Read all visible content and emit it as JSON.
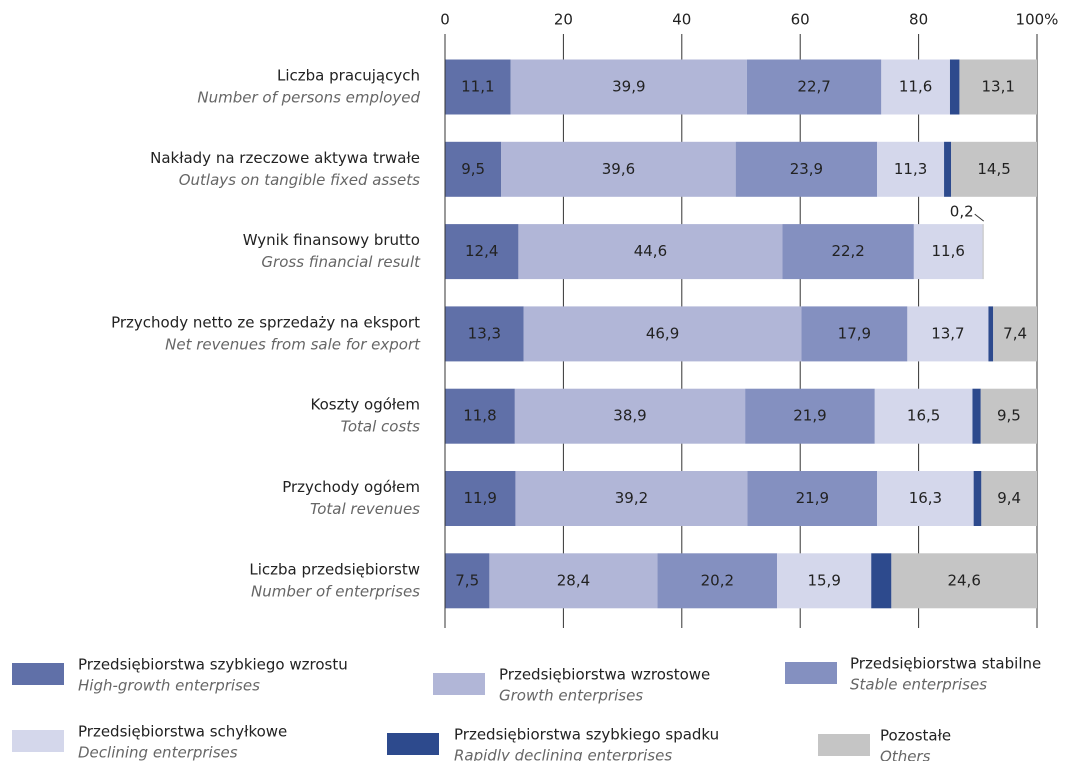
{
  "chart_data": {
    "type": "stacked_bar_horizontal",
    "categories": [
      "Liczba pracujących",
      "Nakłady na rzeczowe aktywa trwałe",
      "Wynik finansowy brutto",
      "Przychody netto ze sprzedaży na eksport",
      "Koszty ogółem",
      "Przychody ogółem",
      "Liczba przedsiębiorstw"
    ],
    "categories_en": [
      "Number of persons employed",
      "Outlays on tangible fixed assets",
      "Gross financial result",
      "Net revenues from sale for export",
      "Total costs",
      "Total revenues",
      "Number of enterprises"
    ],
    "xlim": [
      0,
      100
    ],
    "xticks": [
      0,
      20,
      40,
      60,
      80,
      {
        "value": 100,
        "label": "100%"
      }
    ],
    "grid": true,
    "series": [
      {
        "name": "Przedsiębiorstwa szybkiego wzrostu",
        "name_en": "High-growth enterprises",
        "color": "#6070a8",
        "values": [
          11.1,
          9.5,
          12.4,
          13.3,
          11.8,
          11.9,
          7.5
        ],
        "value_labels": [
          "11,1",
          "9,5",
          "12,4",
          "13,3",
          "11,8",
          "11,9",
          "7,5"
        ]
      },
      {
        "name": "Przedsiębiorstwa wzrostowe",
        "name_en": "Growth enterprises",
        "color": "#b1b6d7",
        "values": [
          39.9,
          39.6,
          44.6,
          46.9,
          38.9,
          39.2,
          28.4
        ],
        "value_labels": [
          "39,9",
          "39,6",
          "44,6",
          "46,9",
          "38,9",
          "39,2",
          "28,4"
        ]
      },
      {
        "name": "Przedsiębiorstwa stabilne",
        "name_en": "Stable enterprises",
        "color": "#8490c0",
        "values": [
          22.7,
          23.9,
          22.2,
          17.9,
          21.9,
          21.9,
          20.2
        ],
        "value_labels": [
          "22,7",
          "23,9",
          "22,2",
          "17,9",
          "21,9",
          "21,9",
          "20,2"
        ]
      },
      {
        "name": "Przedsiębiorstwa schyłkowe",
        "name_en": "Declining enterprises",
        "color": "#d4d7eb",
        "values": [
          11.6,
          11.3,
          11.6,
          13.7,
          16.5,
          16.3,
          15.9
        ],
        "value_labels": [
          "11,6",
          "11,3",
          "11,6",
          "13,7",
          "16,5",
          "16,3",
          "15,9"
        ]
      },
      {
        "name": "Przedsiębiorstwa szybkiego spadku",
        "name_en": "Rapidly declining enterprises",
        "color": "#2d4a8d",
        "values": [
          1.6,
          1.2,
          0,
          0.8,
          1.4,
          1.3,
          3.4
        ]
      },
      {
        "name": "Pozostałe",
        "name_en": "Others",
        "color": "#c5c5c5",
        "values": [
          13.1,
          14.5,
          0.2,
          7.4,
          9.5,
          9.4,
          24.6
        ],
        "value_labels": [
          "13,1",
          "14,5",
          "0,2",
          "7,4",
          "9,5",
          "9,4",
          "24,6"
        ]
      }
    ]
  }
}
